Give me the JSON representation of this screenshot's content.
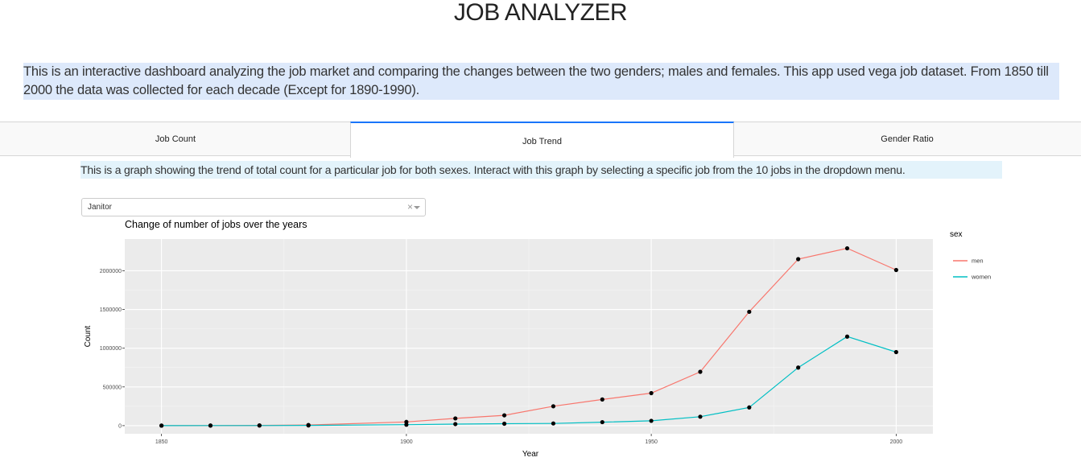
{
  "app": {
    "title": "JOB ANALYZER"
  },
  "intro": {
    "text": "This is an interactive dashboard analyzing the job market and comparing the changes between the two genders; males and females. This app used vega job dataset. From 1850 till 2000 the data was collected for each decade (Except for 1890-1990)."
  },
  "tabs": [
    {
      "label": "Job Count",
      "active": false
    },
    {
      "label": "Job Trend",
      "active": true
    },
    {
      "label": "Gender Ratio",
      "active": false
    }
  ],
  "job_trend": {
    "description": "This is a graph showing the trend of total count for a particular job for both sexes. Interact with this graph by selecting a specific job from the 10 jobs in the dropdown menu.",
    "dropdown": {
      "selected": "Janitor",
      "clear_glyph": "×"
    }
  },
  "colors": {
    "men": "#f8766d",
    "women": "#00bfc4",
    "panel_bg": "#ebebeb",
    "tab_accent": "#1975fa",
    "intro_bg": "#dde9fb",
    "desc_bg": "#e3f3fb"
  },
  "chart_data": {
    "type": "line",
    "title": "Change of number of jobs over the years",
    "xlabel": "Year",
    "ylabel": "Count",
    "legend_title": "sex",
    "legend_position": "right",
    "grid": true,
    "x": [
      1850,
      1860,
      1870,
      1880,
      1900,
      1910,
      1920,
      1930,
      1940,
      1950,
      1960,
      1970,
      1980,
      1990,
      2000
    ],
    "xlim": [
      1842.5,
      2007.5
    ],
    "ylim": [
      -105000,
      2410000
    ],
    "xticks": [
      1850,
      1900,
      1950,
      2000
    ],
    "yticks": [
      0,
      500000,
      1000000,
      1500000,
      2000000
    ],
    "xtick_labels": [
      "1850",
      "1900",
      "1950",
      "2000"
    ],
    "ytick_labels": [
      "0",
      "500000",
      "1000000",
      "1500000",
      "2000000"
    ],
    "series": [
      {
        "name": "men",
        "values": [
          200,
          1500,
          3500,
          8000,
          48000,
          93000,
          133000,
          250000,
          338000,
          420000,
          695000,
          1470000,
          2150000,
          2290000,
          2010000
        ]
      },
      {
        "name": "women",
        "values": [
          100,
          500,
          1500,
          3000,
          12000,
          20000,
          25000,
          28000,
          45000,
          62000,
          115000,
          235000,
          750000,
          1150000,
          950000
        ]
      }
    ]
  }
}
